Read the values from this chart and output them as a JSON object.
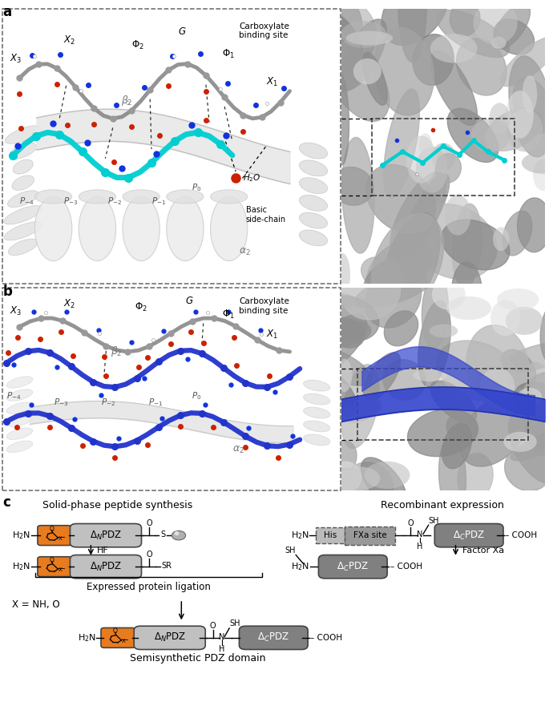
{
  "panel_a_label": "a",
  "panel_b_label": "b",
  "panel_c_label": "c",
  "panel_c_title_left": "Solid-phase peptide synthesis",
  "panel_c_title_right": "Recombinant expression",
  "epl_label": "Expressed protein ligation",
  "x_label": "X = NH, O",
  "semisynthetic_label": "Semisynthetic PDZ domain",
  "orange_color": "#E87B1E",
  "background_color": "#FFFFFF",
  "panel_a_bg": "#FFFFFF",
  "panel_b_bg": "#FFFFFF",
  "protein_surface_color": "#A0A0A0",
  "protein_light": "#C8C8C8",
  "protein_dark": "#707070",
  "cyan_color": "#00CED1",
  "blue_color": "#2233CC",
  "gray_chain_color": "#888888",
  "red_atom_color": "#CC2200",
  "blue_atom_color": "#1122CC",
  "font_panel_label": 12,
  "font_text": 9,
  "font_small": 8,
  "font_tiny": 7
}
